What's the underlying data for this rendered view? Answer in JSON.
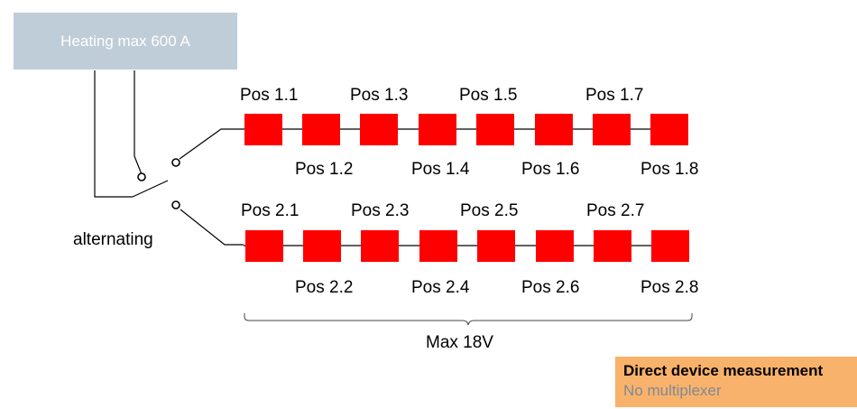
{
  "source": {
    "label": "Heating max 600 A"
  },
  "switch": {
    "label": "alternating"
  },
  "rows": [
    {
      "top_labels": [
        "Pos 1.1",
        "Pos 1.3",
        "Pos 1.5",
        "Pos 1.7"
      ],
      "bottom_labels": [
        "Pos 1.2",
        "Pos 1.4",
        "Pos 1.6",
        "Pos 1.8"
      ]
    },
    {
      "top_labels": [
        "Pos 2.1",
        "Pos 2.3",
        "Pos 2.5",
        "Pos 2.7"
      ],
      "bottom_labels": [
        "Pos 2.2",
        "Pos 2.4",
        "Pos 2.6",
        "Pos 2.8"
      ]
    }
  ],
  "voltage": {
    "label": "Max 18V"
  },
  "legend": {
    "title": "Direct device measurement",
    "subtitle": "No multiplexer"
  },
  "colors": {
    "element": "#ff0000",
    "source_fill": "#bfcdd8",
    "legend_fill": "#f9b26b",
    "legend_subtitle": "#7f8a96"
  }
}
